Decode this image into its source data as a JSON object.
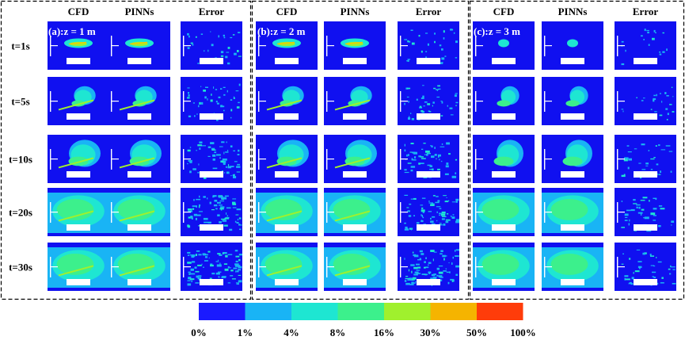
{
  "panels": [
    {
      "id": "a",
      "label": "(a):z = 1 m",
      "columns": [
        "CFD",
        "PINNs",
        "Error"
      ]
    },
    {
      "id": "b",
      "label": "(b):z = 2 m",
      "columns": [
        "CFD",
        "PINNs",
        "Error"
      ]
    },
    {
      "id": "c",
      "label": "(c):z = 3 m",
      "columns": [
        "CFD",
        "PINNs",
        "Error"
      ]
    }
  ],
  "rows": [
    "t=1s",
    "t=5s",
    "t=10s",
    "t=20s",
    "t=30s"
  ],
  "colorbar": {
    "ticks": [
      "0%",
      "1%",
      "4%",
      "8%",
      "16%",
      "30%",
      "50%",
      "100%"
    ],
    "colors": [
      "#1a1aff",
      "#19b4f5",
      "#1ee6d2",
      "#3cf08c",
      "#a0f02d",
      "#f5b400",
      "#ff3c0a"
    ]
  },
  "palette": {
    "background": "#1010f0",
    "c1": "#19b4f5",
    "c2": "#1ee6d2",
    "c3": "#3cf08c",
    "c4": "#a0f02d",
    "c5": "#f5c800"
  }
}
